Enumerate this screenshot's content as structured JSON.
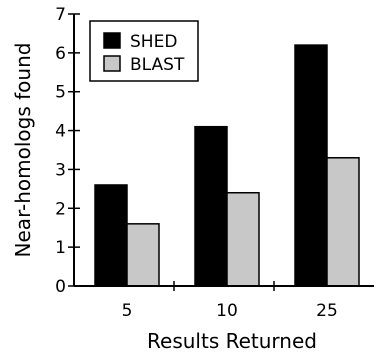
{
  "chart_data": {
    "type": "bar",
    "categories": [
      "5",
      "10",
      "25"
    ],
    "series": [
      {
        "name": "SHED",
        "values": [
          2.6,
          4.1,
          6.2
        ],
        "color": "#000000"
      },
      {
        "name": "BLAST",
        "values": [
          1.6,
          2.4,
          3.3
        ],
        "color": "#c8c8c8"
      }
    ],
    "xlabel": "Results Returned",
    "ylabel": "Near-homologs found",
    "ylim": [
      0,
      7
    ],
    "yticks": [
      "0",
      "1",
      "2",
      "3",
      "4",
      "5",
      "6",
      "7"
    ],
    "grid": false,
    "legend_position": "top-left"
  }
}
